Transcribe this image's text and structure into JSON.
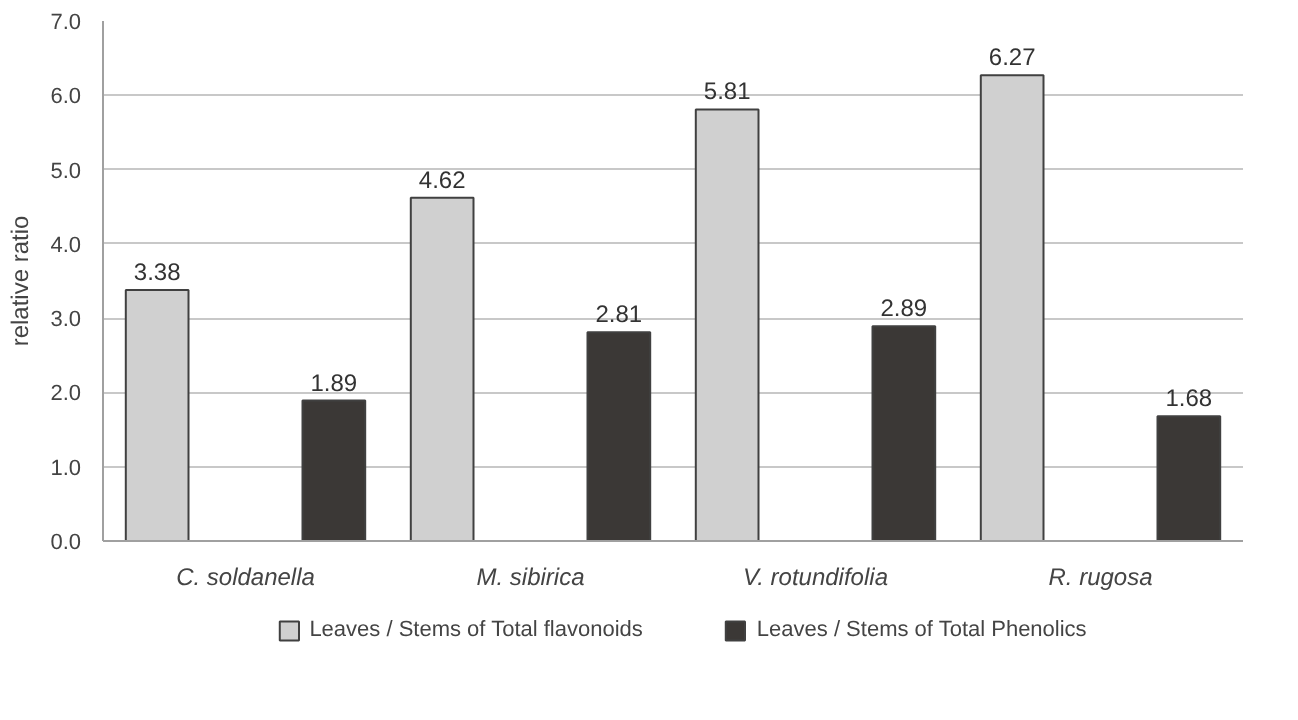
{
  "chart_data": {
    "type": "bar",
    "ylabel": "relative ratio",
    "categories": [
      "C. soldanella",
      "M. sibirica",
      "V. rotundifolia",
      "R. rugosa"
    ],
    "series": [
      {
        "name": "Leaves / Stems of Total flavonoids",
        "color": "#d0d0d0",
        "values": [
          3.38,
          4.62,
          5.81,
          6.27
        ]
      },
      {
        "name": "Leaves / Stems of Total Phenolics",
        "color": "#3b3836",
        "values": [
          1.89,
          2.81,
          2.89,
          1.68
        ]
      }
    ],
    "ylim": [
      0,
      7
    ],
    "yticks": [
      {
        "value": 0,
        "label": "0.0"
      },
      {
        "value": 1,
        "label": "1.0"
      },
      {
        "value": 2,
        "label": "2.0"
      },
      {
        "value": 3,
        "label": "3.0"
      },
      {
        "value": 4,
        "label": "4.0"
      },
      {
        "value": 5,
        "label": "5.0"
      },
      {
        "value": 6,
        "label": "6.0"
      },
      {
        "value": 7,
        "label": "7.0"
      }
    ],
    "grid": "y",
    "legend": "bottom",
    "data_labels": true
  }
}
